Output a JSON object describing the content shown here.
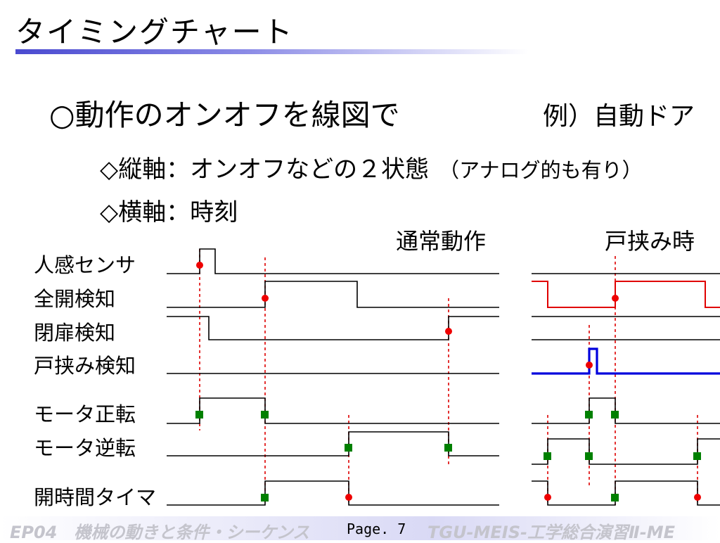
{
  "title": "タイミングチャート",
  "heading": "○動作のオンオフを線図で",
  "example": "例）自動ドア",
  "bullets": [
    {
      "text": "◇縦軸：オンオフなどの２状態",
      "note": "（アナログ的も有り）"
    },
    {
      "text": "◇横軸：時刻"
    }
  ],
  "panels": {
    "normal": "通常動作",
    "pinch": "戸挟み時"
  },
  "signals": [
    "人感センサ",
    "全開検知",
    "閉扉検知",
    "戸挟み検知",
    "モータ正転",
    "モータ逆転",
    "開時間タイマ"
  ],
  "colors": {
    "line": "#000000",
    "event": "#ff0000",
    "action": "#008000",
    "marker": "#dd0000",
    "pinch_open": "#e00000",
    "pinch_detect": "#0000dd"
  },
  "footer": {
    "left": "EP04　機械の動きと条件・シーケンス",
    "page": "Page. 7",
    "right": "TGU-MEIS-工学総合演習Ⅱ-ME"
  }
}
